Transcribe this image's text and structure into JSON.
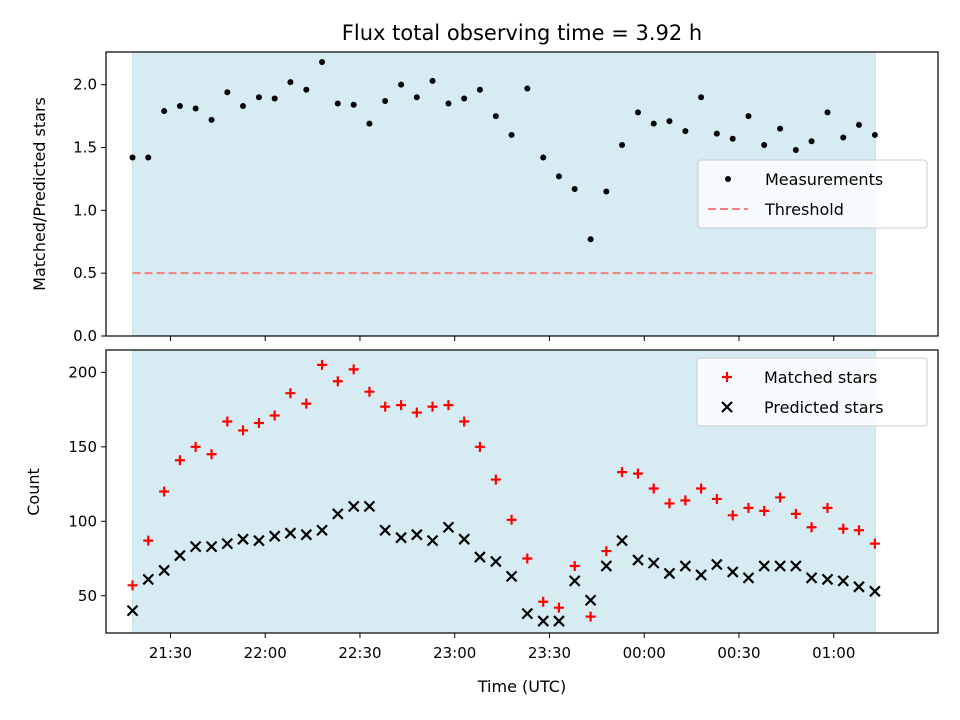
{
  "chart_data": {
    "title": "Flux total observing time = 3.92 h",
    "xlabel": "Time (UTC)",
    "x_unit": "hours since 00:00 UTC (negative = previous day)",
    "x_range": [
      -2.84,
      1.55
    ],
    "shaded_span": [
      -2.7,
      1.22
    ],
    "x_ticks": [
      -2.5,
      -2.0,
      -1.5,
      -1.0,
      -0.5,
      0.0,
      0.5,
      1.0
    ],
    "x_tick_labels": [
      "21:30",
      "22:00",
      "22:30",
      "23:00",
      "23:30",
      "00:00",
      "00:30",
      "01:00"
    ],
    "x": [
      -2.7,
      -2.617,
      -2.533,
      -2.45,
      -2.367,
      -2.283,
      -2.2,
      -2.117,
      -2.033,
      -1.95,
      -1.867,
      -1.783,
      -1.7,
      -1.617,
      -1.533,
      -1.45,
      -1.367,
      -1.283,
      -1.2,
      -1.117,
      -1.033,
      -0.95,
      -0.867,
      -0.783,
      -0.7,
      -0.617,
      -0.533,
      -0.45,
      -0.367,
      -0.283,
      -0.2,
      -0.117,
      -0.033,
      0.05,
      0.133,
      0.217,
      0.3,
      0.383,
      0.467,
      0.55,
      0.633,
      0.717,
      0.8,
      0.883,
      0.967,
      1.05,
      1.133,
      1.217
    ],
    "panels": [
      {
        "type": "scatter",
        "ylabel": "Matched/Predicted stars",
        "ylim": [
          0,
          2.26
        ],
        "y_ticks": [
          0.0,
          0.5,
          1.0,
          1.5,
          2.0
        ],
        "y_tick_labels": [
          "0.0",
          "0.5",
          "1.0",
          "1.5",
          "2.0"
        ],
        "legend_position": "center-right",
        "series": [
          {
            "name": "Measurements",
            "marker": "dot",
            "color": "#000000",
            "y": [
              1.42,
              1.42,
              1.79,
              1.83,
              1.81,
              1.72,
              1.94,
              1.83,
              1.9,
              1.89,
              2.02,
              1.96,
              2.18,
              1.85,
              1.84,
              1.69,
              1.87,
              2.0,
              1.9,
              2.03,
              1.85,
              1.89,
              1.96,
              1.75,
              1.6,
              1.97,
              1.42,
              1.27,
              1.17,
              0.77,
              1.15,
              1.52,
              1.78,
              1.69,
              1.71,
              1.63,
              1.9,
              1.61,
              1.57,
              1.75,
              1.52,
              1.65,
              1.48,
              1.55,
              1.78,
              1.58,
              1.68,
              1.6
            ]
          },
          {
            "name": "Threshold",
            "type": "hline",
            "style": "dashed",
            "color": "#f08080",
            "y": 0.5
          }
        ]
      },
      {
        "type": "scatter",
        "ylabel": "Count",
        "ylim": [
          25,
          215
        ],
        "y_ticks": [
          50,
          100,
          150,
          200
        ],
        "y_tick_labels": [
          "50",
          "100",
          "150",
          "200"
        ],
        "legend_position": "top-right",
        "series": [
          {
            "name": "Matched stars",
            "marker": "plus",
            "color": "#ff0000",
            "y": [
              57,
              87,
              120,
              141,
              150,
              145,
              167,
              161,
              166,
              171,
              186,
              179,
              205,
              194,
              202,
              187,
              177,
              178,
              173,
              177,
              178,
              167,
              150,
              128,
              101,
              75,
              46,
              42,
              70,
              36,
              80,
              133,
              132,
              122,
              112,
              114,
              122,
              115,
              104,
              109,
              107,
              116,
              105,
              96,
              109,
              95,
              94,
              85
            ]
          },
          {
            "name": "Predicted stars",
            "marker": "x",
            "color": "#000000",
            "y": [
              40,
              61,
              67,
              77,
              83,
              83,
              85,
              88,
              87,
              90,
              92,
              91,
              94,
              105,
              110,
              110,
              94,
              89,
              91,
              87,
              96,
              88,
              76,
              73,
              63,
              38,
              33,
              33,
              60,
              47,
              70,
              87,
              74,
              72,
              65,
              70,
              64,
              71,
              66,
              62,
              70,
              70,
              70,
              62,
              61,
              60,
              56,
              53
            ]
          }
        ]
      }
    ],
    "shade_color": "#add8e6"
  }
}
